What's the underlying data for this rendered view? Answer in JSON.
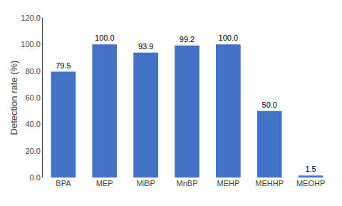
{
  "chart_data": {
    "type": "bar",
    "categories": [
      "BPA",
      "MEP",
      "MiBP",
      "MnBP",
      "MEHP",
      "MEHHP",
      "MEOHP"
    ],
    "values": [
      79.5,
      100.0,
      93.9,
      99.2,
      100.0,
      50.0,
      1.5
    ],
    "value_labels": [
      "79.5",
      "100.0",
      "93.9",
      "99.2",
      "100.0",
      "50.0",
      "1.5"
    ],
    "data_labels": true,
    "color": "#4472C4",
    "ylabel": "Detection rate (%)",
    "ylim": [
      0,
      120
    ],
    "yticks": [
      {
        "value": 0,
        "label": "0.0"
      },
      {
        "value": 20,
        "label": "20.0"
      },
      {
        "value": 40,
        "label": "40.0"
      },
      {
        "value": 60,
        "label": "60.0"
      },
      {
        "value": 80,
        "label": "80.0"
      },
      {
        "value": 100,
        "label": "100.0"
      },
      {
        "value": 120,
        "label": "120.0"
      }
    ],
    "grid": false
  }
}
